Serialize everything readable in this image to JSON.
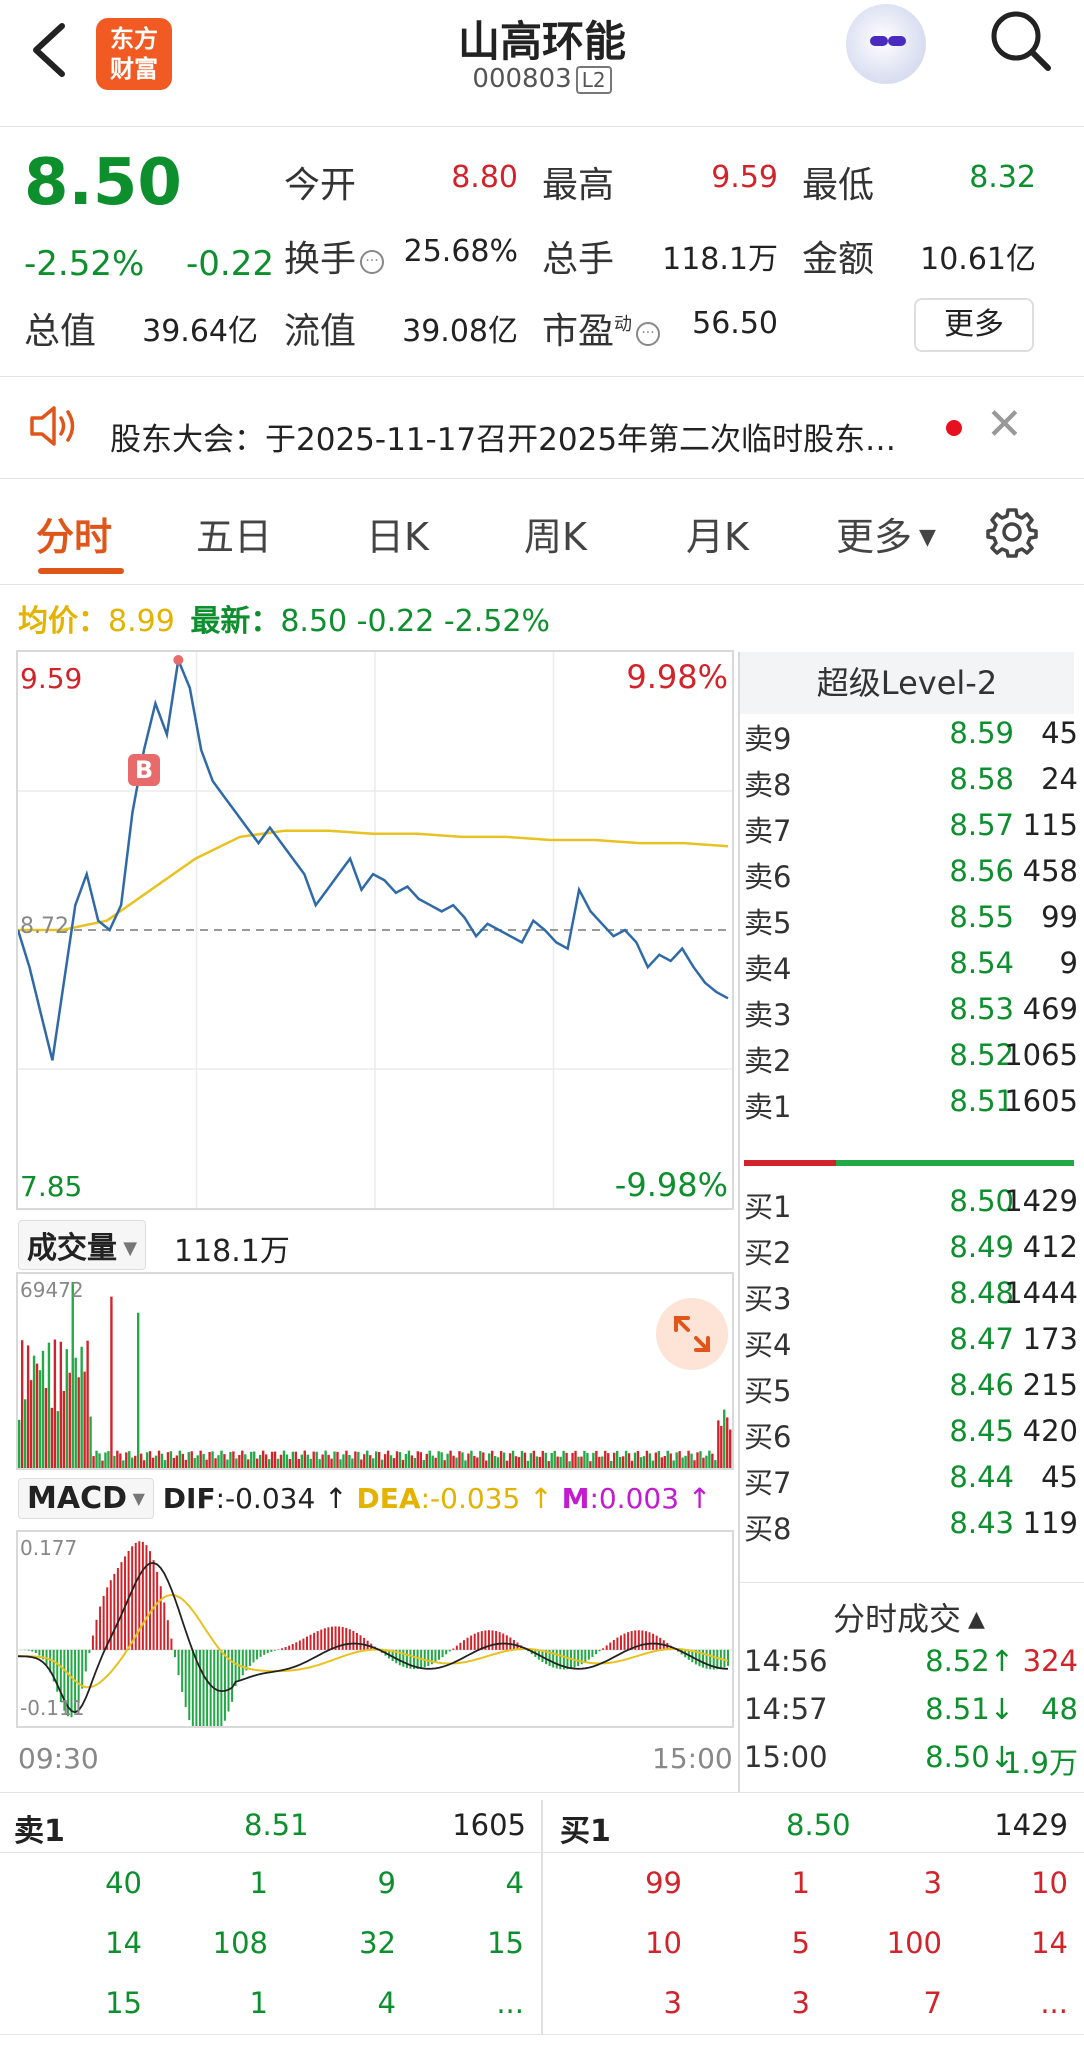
{
  "header": {
    "logo_line1": "东方",
    "logo_line2": "财富",
    "title": "山高环能",
    "code": "000803",
    "level_badge": "L2",
    "icons": {
      "back": "chevron-left-icon",
      "search": "search-icon",
      "avatar": "robot-avatar-icon"
    }
  },
  "quote": {
    "price": "8.50",
    "change_pct": "-2.52%",
    "change": "-0.22",
    "fields": {
      "open_label": "今开",
      "open": "8.80",
      "high_label": "最高",
      "high": "9.59",
      "low_label": "最低",
      "low": "8.32",
      "turnover_label": "换手",
      "turnover": "25.68%",
      "volume_label": "总手",
      "volume": "118.1万",
      "amount_label": "金额",
      "amount": "10.61亿",
      "mcap_label": "总值",
      "mcap": "39.64亿",
      "float_label": "流值",
      "float_cap": "39.08亿",
      "pe_label": "市盈",
      "pe_sup": "动",
      "pe": "56.50"
    },
    "more_button": "更多",
    "colors": {
      "down": "#0d8f2e",
      "up": "#d2232a"
    }
  },
  "notice": {
    "text": "股东大会：于2025-11-17召开2025年第二次临时股东…",
    "icons": {
      "speaker": "speaker-icon",
      "close": "close-icon"
    }
  },
  "tabs": {
    "items": [
      "分时",
      "五日",
      "日K",
      "周K",
      "月K",
      "更多"
    ],
    "active": "分时",
    "settings_icon": "gear-icon"
  },
  "intraday": {
    "avg_label": "均价：",
    "avg_value": "8.99",
    "latest_label": "最新：",
    "latest_value": "8.50 -0.22 -2.52%",
    "high_label": "9.59",
    "low_label": "7.85",
    "up_limit_pct": "9.98%",
    "down_limit_pct": "-9.98%",
    "prev_close_label": "8.72",
    "buy_marker": "B",
    "time_start": "09:30",
    "time_end": "15:00"
  },
  "volume": {
    "selector": "成交量",
    "total": "118.1万",
    "max_label": "69472"
  },
  "macd": {
    "selector": "MACD",
    "dif_label": "DIF",
    "dif": ":-0.034",
    "dea_label": "DEA",
    "dea": ":-0.035",
    "m_label": "M",
    "m": ":0.003",
    "max_label": "0.177",
    "min_label": "-0.111"
  },
  "chart_data": {
    "type": "line",
    "ylim": [
      7.85,
      9.59
    ],
    "price_series": [
      8.72,
      8.6,
      8.45,
      8.3,
      8.55,
      8.8,
      8.9,
      8.75,
      8.72,
      8.8,
      9.1,
      9.3,
      9.45,
      9.35,
      9.59,
      9.5,
      9.3,
      9.2,
      9.15,
      9.1,
      9.05,
      9.0,
      9.05,
      9.0,
      8.95,
      8.9,
      8.8,
      8.85,
      8.9,
      8.95,
      8.85,
      8.9,
      8.88,
      8.84,
      8.86,
      8.82,
      8.8,
      8.78,
      8.8,
      8.76,
      8.7,
      8.74,
      8.72,
      8.7,
      8.68,
      8.75,
      8.72,
      8.68,
      8.66,
      8.85,
      8.78,
      8.74,
      8.7,
      8.72,
      8.68,
      8.6,
      8.64,
      8.62,
      8.66,
      8.6,
      8.55,
      8.52,
      8.5
    ],
    "avg_series": [
      8.72,
      8.72,
      8.75,
      8.85,
      8.95,
      9.02,
      9.04,
      9.04,
      9.03,
      9.03,
      9.02,
      9.02,
      9.01,
      9.01,
      9.0,
      9.0,
      8.99
    ],
    "volume_max": 69472,
    "macd_range": [
      -0.111,
      0.177
    ]
  },
  "order_book": {
    "title": "超级Level-2",
    "asks": [
      {
        "name": "卖9",
        "price": "8.59",
        "vol": "45"
      },
      {
        "name": "卖8",
        "price": "8.58",
        "vol": "24"
      },
      {
        "name": "卖7",
        "price": "8.57",
        "vol": "115"
      },
      {
        "name": "卖6",
        "price": "8.56",
        "vol": "458"
      },
      {
        "name": "卖5",
        "price": "8.55",
        "vol": "99"
      },
      {
        "name": "卖4",
        "price": "8.54",
        "vol": "9"
      },
      {
        "name": "卖3",
        "price": "8.53",
        "vol": "469"
      },
      {
        "name": "卖2",
        "price": "8.52",
        "vol": "1065"
      },
      {
        "name": "卖1",
        "price": "8.51",
        "vol": "1605"
      }
    ],
    "bids": [
      {
        "name": "买1",
        "price": "8.50",
        "vol": "1429"
      },
      {
        "name": "买2",
        "price": "8.49",
        "vol": "412"
      },
      {
        "name": "买3",
        "price": "8.48",
        "vol": "1444"
      },
      {
        "name": "买4",
        "price": "8.47",
        "vol": "173"
      },
      {
        "name": "买5",
        "price": "8.46",
        "vol": "215"
      },
      {
        "name": "买6",
        "price": "8.45",
        "vol": "420"
      },
      {
        "name": "买7",
        "price": "8.44",
        "vol": "45"
      },
      {
        "name": "买8",
        "price": "8.43",
        "vol": "119"
      }
    ],
    "bid_ask_ratio": 0.28
  },
  "trades": {
    "title": "分时成交",
    "rows": [
      {
        "time": "14:56",
        "price": "8.52↑",
        "vol": "324",
        "dir": "up"
      },
      {
        "time": "14:57",
        "price": "8.51↓",
        "vol": "48",
        "dir": "down"
      },
      {
        "time": "15:00",
        "price": "8.50↓",
        "vol": "1.9万",
        "dir": "down"
      }
    ]
  },
  "queue": {
    "ask_label": "卖1",
    "ask_price": "8.51",
    "ask_total": "1605",
    "bid_label": "买1",
    "bid_price": "8.50",
    "bid_total": "1429",
    "ask_rows": [
      [
        "40",
        "1",
        "9",
        "4"
      ],
      [
        "14",
        "108",
        "32",
        "15"
      ],
      [
        "15",
        "1",
        "4",
        "..."
      ]
    ],
    "bid_rows": [
      [
        "99",
        "1",
        "3",
        "10"
      ],
      [
        "10",
        "5",
        "100",
        "14"
      ],
      [
        "3",
        "3",
        "7",
        "..."
      ]
    ]
  }
}
